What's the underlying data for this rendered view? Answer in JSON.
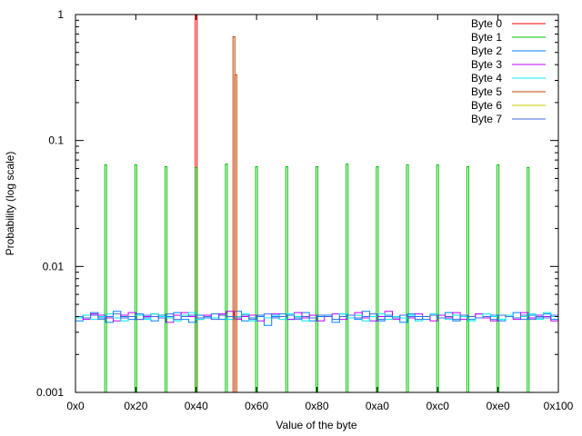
{
  "chart_data": {
    "type": "line",
    "style": "histogram-steps",
    "title": "",
    "xlabel": "Value of the byte",
    "ylabel": "Probability (log scale)",
    "xlim": [
      0,
      256
    ],
    "ylim": [
      0.001,
      1
    ],
    "yscale": "log",
    "x_ticks": [
      {
        "value": 0,
        "label": "0x0"
      },
      {
        "value": 32,
        "label": "0x20"
      },
      {
        "value": 64,
        "label": "0x40"
      },
      {
        "value": 96,
        "label": "0x60"
      },
      {
        "value": 128,
        "label": "0x80"
      },
      {
        "value": 160,
        "label": "0xa0"
      },
      {
        "value": 192,
        "label": "0xc0"
      },
      {
        "value": 224,
        "label": "0xe0"
      },
      {
        "value": 256,
        "label": "0x100"
      }
    ],
    "y_ticks": [
      {
        "value": 1,
        "label": "1"
      },
      {
        "value": 0.1,
        "label": "0.1"
      },
      {
        "value": 0.01,
        "label": "0.01"
      },
      {
        "value": 0.001,
        "label": "0.001"
      }
    ],
    "legend_position": "top-right",
    "series": [
      {
        "name": "Byte 0",
        "color": "#ff0000",
        "spikes": [
          [
            64,
            1.0
          ]
        ]
      },
      {
        "name": "Byte 1",
        "color": "#00c000",
        "spikes": [
          [
            16,
            0.064
          ],
          [
            32,
            0.064
          ],
          [
            48,
            0.062
          ],
          [
            64,
            0.061
          ],
          [
            80,
            0.065
          ],
          [
            96,
            0.062
          ],
          [
            112,
            0.062
          ],
          [
            128,
            0.062
          ],
          [
            144,
            0.065
          ],
          [
            160,
            0.062
          ],
          [
            176,
            0.064
          ],
          [
            192,
            0.064
          ],
          [
            208,
            0.062
          ],
          [
            224,
            0.064
          ],
          [
            240,
            0.061
          ]
        ]
      },
      {
        "name": "Byte 2",
        "color": "#0080ff",
        "bin": 4,
        "values": [
          0.0037,
          0.0041,
          0.0043,
          0.0039,
          0.0036,
          0.0044,
          0.004,
          0.0038,
          0.0042,
          0.0039,
          0.0037,
          0.0041,
          0.004,
          0.0043,
          0.0038,
          0.0036,
          0.0041,
          0.0039,
          0.0042,
          0.0038,
          0.004,
          0.0044,
          0.0037,
          0.0039,
          0.0041,
          0.0034,
          0.004,
          0.0042,
          0.0038,
          0.0039,
          0.0043,
          0.0037,
          0.004,
          0.0041,
          0.0036,
          0.0042,
          0.0039,
          0.0038,
          0.0044,
          0.004,
          0.0037,
          0.0041,
          0.0039,
          0.0036,
          0.0042,
          0.004,
          0.0038,
          0.0041,
          0.0039,
          0.0043,
          0.0037,
          0.004,
          0.0038,
          0.0042,
          0.0039,
          0.0041,
          0.0037,
          0.004,
          0.0043,
          0.0038,
          0.0041,
          0.0039,
          0.0042,
          0.0038
        ]
      },
      {
        "name": "Byte 3",
        "color": "#c000ff",
        "bin": 4,
        "values": [
          0.004,
          0.0038,
          0.0042,
          0.0041,
          0.0039,
          0.0037,
          0.0041,
          0.0043,
          0.0038,
          0.004,
          0.0042,
          0.0039,
          0.0036,
          0.0041,
          0.0043,
          0.004,
          0.0038,
          0.0041,
          0.0039,
          0.0042,
          0.0044,
          0.0038,
          0.004,
          0.0041,
          0.0037,
          0.0039,
          0.0042,
          0.004,
          0.0038,
          0.0043,
          0.0039,
          0.0041,
          0.0037,
          0.004,
          0.0042,
          0.0038,
          0.0041,
          0.0043,
          0.0039,
          0.0037,
          0.004,
          0.0044,
          0.0038,
          0.0041,
          0.0039,
          0.0042,
          0.004,
          0.0037,
          0.0041,
          0.0039,
          0.0043,
          0.0038,
          0.004,
          0.0042,
          0.0039,
          0.0037,
          0.0041,
          0.004,
          0.0038,
          0.0043,
          0.0039,
          0.0041,
          0.004,
          0.0037
        ]
      },
      {
        "name": "Byte 4",
        "color": "#00eeee",
        "bin": 4,
        "values": [
          0.0039,
          0.0041,
          0.0038,
          0.004,
          0.0042,
          0.0039,
          0.0037,
          0.004,
          0.0041,
          0.0038,
          0.0042,
          0.004,
          0.0039,
          0.0037,
          0.0041,
          0.0043,
          0.0038,
          0.004,
          0.0039,
          0.0041,
          0.0038,
          0.004,
          0.0042,
          0.0037,
          0.004,
          0.0039,
          0.0041,
          0.0038,
          0.0042,
          0.004,
          0.0037,
          0.0039,
          0.0041,
          0.004,
          0.0038,
          0.0042,
          0.0039,
          0.0041,
          0.0037,
          0.004,
          0.0042,
          0.0038,
          0.004,
          0.0039,
          0.0041,
          0.0037,
          0.004,
          0.0042,
          0.0039,
          0.0038,
          0.0041,
          0.004,
          0.0037,
          0.0039,
          0.0042,
          0.004,
          0.0038,
          0.0041,
          0.0039,
          0.004,
          0.0042,
          0.0038,
          0.0043,
          0.004
        ]
      },
      {
        "name": "Byte 5",
        "color": "#c04000",
        "spikes": [
          [
            84,
            0.667
          ],
          [
            85,
            0.333
          ]
        ]
      },
      {
        "name": "Byte 6",
        "color": "#c8c800",
        "bin": 4,
        "values": []
      },
      {
        "name": "Byte 7",
        "color": "#4169e1",
        "bin": 4,
        "values": [
          0.004,
          0.0039,
          0.0041,
          0.0038,
          0.004,
          0.0042,
          0.0039,
          0.004,
          0.0038,
          0.0041,
          0.004,
          0.0039,
          0.0042,
          0.0038,
          0.004,
          0.0041,
          0.0039,
          0.004,
          0.0038,
          0.0041,
          0.004,
          0.0039,
          0.0041,
          0.0038,
          0.004,
          0.0042,
          0.0039,
          0.004,
          0.0041,
          0.0038,
          0.004,
          0.0039,
          0.0041,
          0.004,
          0.0038,
          0.004,
          0.0041,
          0.0039,
          0.004,
          0.0042,
          0.0038,
          0.004,
          0.0039,
          0.0041,
          0.004,
          0.0038,
          0.004,
          0.0041,
          0.0039,
          0.004,
          0.0038,
          0.0041,
          0.004,
          0.0039,
          0.004,
          0.0038,
          0.0041,
          0.004,
          0.0039,
          0.0041,
          0.0038,
          0.004,
          0.0039,
          0.0041
        ]
      }
    ]
  }
}
